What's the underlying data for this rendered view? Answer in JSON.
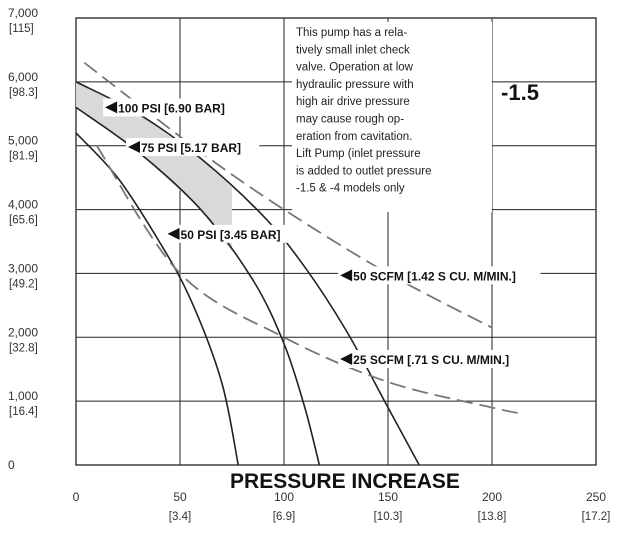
{
  "chart_data": {
    "type": "line",
    "title": "",
    "xlabel": "PRESSURE INCREASE",
    "ylabel": "",
    "xlim": [
      0,
      250
    ],
    "ylim": [
      0,
      7000
    ],
    "grid": true,
    "x_ticks": [
      {
        "value": 0,
        "label": "0",
        "sub": ""
      },
      {
        "value": 50,
        "label": "50",
        "sub": "[3.4]"
      },
      {
        "value": 100,
        "label": "100",
        "sub": "[6.9]"
      },
      {
        "value": 150,
        "label": "150",
        "sub": "[10.3]"
      },
      {
        "value": 200,
        "label": "200",
        "sub": "[13.8]"
      },
      {
        "value": 250,
        "label": "250",
        "sub": "[17.2]"
      }
    ],
    "y_ticks": [
      {
        "value": 0,
        "label": "0",
        "sub": ""
      },
      {
        "value": 1000,
        "label": "1,000",
        "sub": "[16.4]"
      },
      {
        "value": 2000,
        "label": "2,000",
        "sub": "[32.8]"
      },
      {
        "value": 3000,
        "label": "3,000",
        "sub": "[49.2]"
      },
      {
        "value": 4000,
        "label": "4,000",
        "sub": "[65.6]"
      },
      {
        "value": 5000,
        "label": "5,000",
        "sub": "[81.9]"
      },
      {
        "value": 6000,
        "label": "6,000",
        "sub": "[98.3]"
      },
      {
        "value": 7000,
        "label": "7,000",
        "sub": "[115]"
      }
    ],
    "series": [
      {
        "name": "100 PSI [6.90 BAR]",
        "style": "solid",
        "x": [
          0,
          30,
          60,
          90,
          110,
          130,
          150,
          165
        ],
        "y": [
          6000,
          5500,
          4800,
          3900,
          3100,
          2100,
          900,
          0
        ]
      },
      {
        "name": "75 PSI [5.17 BAR]",
        "style": "solid",
        "x": [
          0,
          30,
          60,
          85,
          100,
          110,
          117
        ],
        "y": [
          5600,
          4900,
          4000,
          2900,
          1900,
          900,
          0
        ]
      },
      {
        "name": "50 PSI [3.45 BAR]",
        "style": "solid",
        "x": [
          0,
          20,
          40,
          55,
          70,
          78
        ],
        "y": [
          5200,
          4500,
          3500,
          2600,
          1300,
          0
        ]
      },
      {
        "name": "50 SCFM [1.42 S CU. M/MIN.]",
        "style": "dashed",
        "x": [
          4,
          60,
          100,
          150,
          200
        ],
        "y": [
          6300,
          4900,
          4000,
          3000,
          2150
        ]
      },
      {
        "name": "25 SCFM [.71 S CU. M/MIN.]",
        "style": "dashed",
        "x": [
          10,
          50,
          100,
          150,
          200,
          215
        ],
        "y": [
          5000,
          3000,
          2000,
          1300,
          900,
          800
        ]
      }
    ],
    "shaded_band": {
      "between": [
        "100 PSI [6.90 BAR]",
        "75 PSI [5.17 BAR]"
      ],
      "x_range": [
        0,
        75
      ],
      "color": "#d9d9d9"
    },
    "annotations": [
      {
        "text": "100 PSI [6.90 BAR]",
        "x": 14,
        "y": 5600
      },
      {
        "text": "75 PSI [5.17 BAR]",
        "x": 25,
        "y": 4980
      },
      {
        "text": "50 PSI [3.45 BAR]",
        "x": 44,
        "y": 3620
      },
      {
        "text": "50 SCFM [1.42 S CU. M/MIN.]",
        "x": 127,
        "y": 2970
      },
      {
        "text": "25 SCFM [.71 S CU. M/MIN.]",
        "x": 127,
        "y": 1660
      }
    ],
    "note": [
      "This pump has a rela-",
      "tively small inlet check",
      "valve. Operation at low",
      "hydraulic pressure with",
      "high air drive pressure",
      "may cause rough op-",
      "eration from cavitation.",
      "Lift Pump (inlet pressure",
      "is added to outlet pressure",
      "-1.5 & -4 models only"
    ],
    "model_label": "-1.5"
  }
}
